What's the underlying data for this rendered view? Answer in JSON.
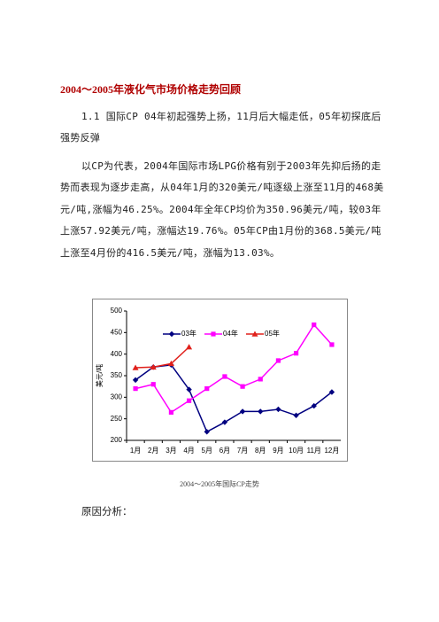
{
  "title": "2004～2005年液化气市场价格走势回顾",
  "paragraphs": [
    "1.1 国际CP 04年初起强势上扬，11月后大幅走低，05年初探底后强势反弹",
    "以CP为代表，2004年国际市场LPG价格有别于2003年先抑后扬的走势而表现为逐步走高，从04年1月的320美元/吨逐级上涨至11月的468美元/吨,涨幅为46.25%。2004年全年CP均价为350.96美元/吨，较03年上涨57.92美元/吨，涨幅达19.76%。05年CP由1月份的368.5美元/吨上涨至4月份的416.5美元/吨，涨幅为13.03%。"
  ],
  "caption": "2004～2005年国际CP走势",
  "section": "原因分析：",
  "chart_data": {
    "type": "line",
    "y_label": "美元/吨",
    "categories": [
      "1月",
      "2月",
      "3月",
      "4月",
      "5月",
      "6月",
      "7月",
      "8月",
      "9月",
      "10月",
      "11月",
      "12月"
    ],
    "series": [
      {
        "name": "03年",
        "color": "#000080",
        "marker": "diamond",
        "values": [
          340,
          370,
          375,
          318,
          220,
          242,
          267,
          267,
          272,
          258,
          280,
          312
        ]
      },
      {
        "name": "04年",
        "color": "#ff00ff",
        "marker": "square",
        "values": [
          320,
          330,
          265,
          292,
          320,
          348,
          325,
          342,
          385,
          402,
          468,
          422
        ]
      },
      {
        "name": "05年",
        "color": "#e0201b",
        "marker": "triangle",
        "values": [
          368.5,
          370,
          378,
          416.5,
          null,
          null,
          null,
          null,
          null,
          null,
          null,
          null
        ]
      }
    ],
    "ylim": [
      200,
      500
    ],
    "yticks": [
      200,
      250,
      300,
      350,
      400,
      450,
      500
    ],
    "legend": "top"
  }
}
